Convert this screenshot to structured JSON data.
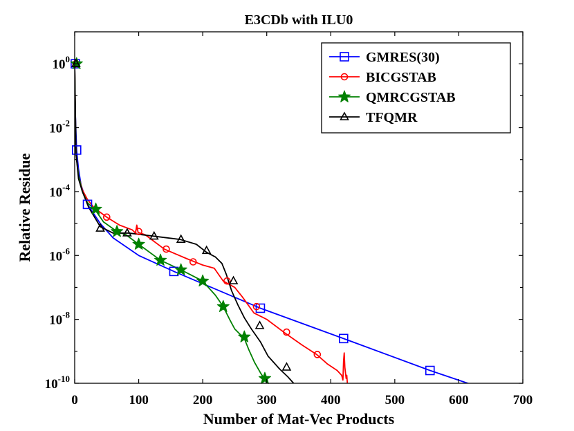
{
  "chart_data": {
    "type": "line",
    "title": "E3CDb with ILU0",
    "xlabel": "Number of Mat-Vec Products",
    "ylabel": "Relative Residue",
    "yscale": "log",
    "xlim": [
      0,
      700
    ],
    "ylim_exp": [
      -10,
      1
    ],
    "xticks": [
      0,
      100,
      200,
      300,
      400,
      500,
      600,
      700
    ],
    "x_tick_labels": [
      "0",
      "100",
      "200",
      "300",
      "400",
      "500",
      "600",
      "700"
    ],
    "y_tick_exponents": [
      0,
      -2,
      -4,
      -6,
      -8,
      -10
    ],
    "y_tick_labels": [
      {
        "base": "10",
        "exp": "0"
      },
      {
        "base": "10",
        "exp": "-2"
      },
      {
        "base": "10",
        "exp": "-4"
      },
      {
        "base": "10",
        "exp": "-6"
      },
      {
        "base": "10",
        "exp": "-8"
      },
      {
        "base": "10",
        "exp": "-10"
      }
    ],
    "legend_position": "top-right",
    "series": [
      {
        "name": "GMRES(30)",
        "color": "#0000ff",
        "marker": "square",
        "line": [
          [
            0,
            0
          ],
          [
            1,
            -1.5
          ],
          [
            3,
            -2.7
          ],
          [
            6,
            -3.3
          ],
          [
            10,
            -3.8
          ],
          [
            15,
            -4.1
          ],
          [
            20,
            -4.4
          ],
          [
            40,
            -5.0
          ],
          [
            60,
            -5.45
          ],
          [
            100,
            -6.0
          ],
          [
            155,
            -6.5
          ],
          [
            290,
            -7.65
          ],
          [
            420,
            -8.6
          ],
          [
            555,
            -9.6
          ],
          [
            688,
            -10.5
          ]
        ],
        "markers": [
          [
            1,
            0
          ],
          [
            3,
            -2.7
          ],
          [
            20,
            -4.4
          ],
          [
            155,
            -6.5
          ],
          [
            290,
            -7.65
          ],
          [
            420,
            -8.6
          ],
          [
            555,
            -9.6
          ]
        ]
      },
      {
        "name": "BICGSTAB",
        "color": "#ff0000",
        "marker": "circle",
        "line": [
          [
            0,
            0
          ],
          [
            2,
            -2.8
          ],
          [
            6,
            -3.5
          ],
          [
            12,
            -3.95
          ],
          [
            20,
            -4.25
          ],
          [
            30,
            -4.5
          ],
          [
            50,
            -4.8
          ],
          [
            70,
            -5.05
          ],
          [
            90,
            -5.2
          ],
          [
            95,
            -5.3
          ],
          [
            97,
            -5.05
          ],
          [
            99,
            -5.28
          ],
          [
            110,
            -5.35
          ],
          [
            140,
            -5.8
          ],
          [
            175,
            -6.1
          ],
          [
            200,
            -6.3
          ],
          [
            218,
            -6.4
          ],
          [
            232,
            -6.8
          ],
          [
            250,
            -7.0
          ],
          [
            262,
            -7.3
          ],
          [
            280,
            -7.8
          ],
          [
            300,
            -8.0
          ],
          [
            330,
            -8.45
          ],
          [
            355,
            -8.8
          ],
          [
            378,
            -9.1
          ],
          [
            395,
            -9.4
          ],
          [
            410,
            -9.6
          ],
          [
            417,
            -9.75
          ],
          [
            419,
            -9.9
          ],
          [
            420,
            -9.3
          ],
          [
            421,
            -9.05
          ],
          [
            422,
            -9.5
          ],
          [
            424,
            -9.85
          ],
          [
            425,
            -9.75
          ],
          [
            427,
            -10.3
          ]
        ],
        "markers": [
          [
            2,
            0
          ],
          [
            50,
            -4.8
          ],
          [
            100,
            -5.25
          ],
          [
            143,
            -5.8
          ],
          [
            185,
            -6.2
          ],
          [
            238,
            -6.8
          ],
          [
            284,
            -7.6
          ],
          [
            331,
            -8.4
          ],
          [
            379,
            -9.1
          ]
        ]
      },
      {
        "name": "QMRCGSTAB",
        "color": "#008000",
        "marker": "star",
        "line": [
          [
            0,
            0
          ],
          [
            2,
            -2.8
          ],
          [
            6,
            -3.5
          ],
          [
            12,
            -4.0
          ],
          [
            20,
            -4.35
          ],
          [
            33,
            -4.6
          ],
          [
            45,
            -4.95
          ],
          [
            66,
            -5.25
          ],
          [
            80,
            -5.35
          ],
          [
            100,
            -5.65
          ],
          [
            134,
            -6.15
          ],
          [
            166,
            -6.45
          ],
          [
            200,
            -6.8
          ],
          [
            220,
            -7.25
          ],
          [
            232,
            -7.6
          ],
          [
            242,
            -8.0
          ],
          [
            250,
            -8.3
          ],
          [
            265,
            -8.6
          ],
          [
            272,
            -8.95
          ],
          [
            281,
            -9.35
          ],
          [
            291,
            -9.7
          ],
          [
            299,
            -9.95
          ],
          [
            305,
            -10.6
          ]
        ],
        "markers": [
          [
            3,
            0
          ],
          [
            33,
            -4.55
          ],
          [
            66,
            -5.25
          ],
          [
            100,
            -5.65
          ],
          [
            134,
            -6.15
          ],
          [
            166,
            -6.45
          ],
          [
            200,
            -6.8
          ],
          [
            232,
            -7.6
          ],
          [
            265,
            -8.55
          ],
          [
            297,
            -9.85
          ]
        ]
      },
      {
        "name": "TFQMR",
        "color": "#000000",
        "marker": "triangle",
        "line": [
          [
            0,
            0
          ],
          [
            2,
            -2.8
          ],
          [
            6,
            -3.6
          ],
          [
            12,
            -4.0
          ],
          [
            22,
            -4.5
          ],
          [
            40,
            -5.1
          ],
          [
            60,
            -5.3
          ],
          [
            85,
            -5.3
          ],
          [
            125,
            -5.4
          ],
          [
            165,
            -5.5
          ],
          [
            190,
            -5.65
          ],
          [
            206,
            -5.9
          ],
          [
            220,
            -6.05
          ],
          [
            230,
            -6.25
          ],
          [
            237,
            -6.6
          ],
          [
            245,
            -7.1
          ],
          [
            255,
            -7.55
          ],
          [
            265,
            -7.95
          ],
          [
            276,
            -8.3
          ],
          [
            290,
            -8.7
          ],
          [
            302,
            -9.15
          ],
          [
            320,
            -9.55
          ],
          [
            333,
            -9.8
          ],
          [
            342,
            -10.0
          ],
          [
            350,
            -10.25
          ]
        ],
        "markers": [
          [
            2,
            0
          ],
          [
            40,
            -5.15
          ],
          [
            82,
            -5.3
          ],
          [
            124,
            -5.4
          ],
          [
            166,
            -5.5
          ],
          [
            206,
            -5.85
          ],
          [
            248,
            -6.8
          ],
          [
            289,
            -8.2
          ],
          [
            331,
            -9.5
          ]
        ]
      }
    ]
  }
}
